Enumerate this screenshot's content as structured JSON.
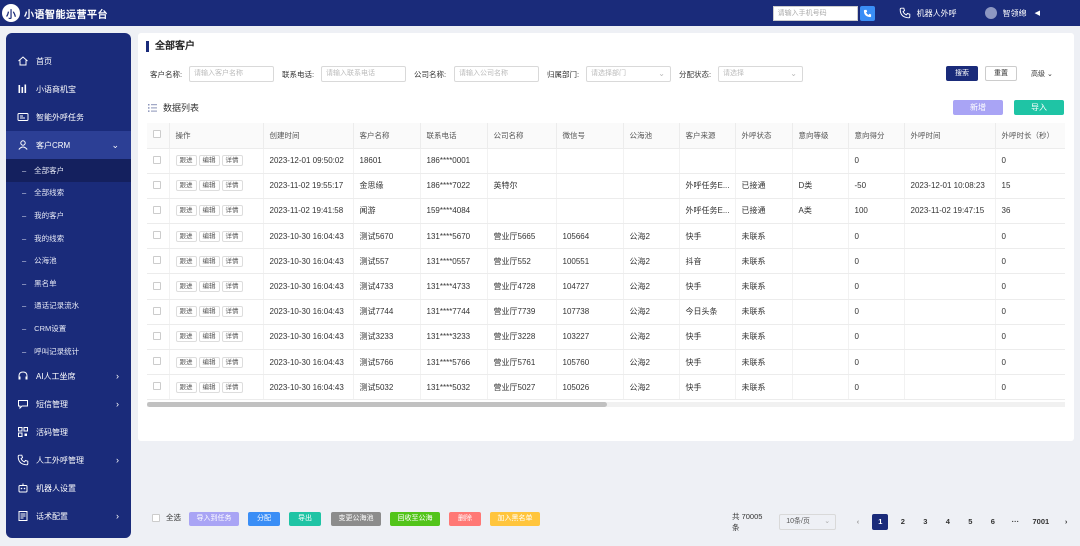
{
  "app": {
    "logo_char": "小",
    "title": "小语智能运营平台"
  },
  "header": {
    "phone_placeholder": "请输入手机号码",
    "robot_call_label": "机器人外呼",
    "user_name": "智领绵",
    "collapse_glyph": "◀"
  },
  "sidebar": {
    "items": [
      {
        "label": "首页",
        "icon": "home-icon"
      },
      {
        "label": "小语商机宝",
        "icon": "chart-bars-icon"
      },
      {
        "label": "智能外呼任务",
        "icon": "id-card-icon"
      },
      {
        "label": "客户CRM",
        "icon": "users-icon",
        "open": true
      }
    ],
    "crm_sub": [
      "全部客户",
      "全部线索",
      "我的客户",
      "我的线索",
      "公海池",
      "黑名单",
      "通话记录流水",
      "CRM设置",
      "呼叫记录统计"
    ],
    "items_after": [
      {
        "label": "AI人工坐席",
        "icon": "headset-icon",
        "chevron": true
      },
      {
        "label": "短信管理",
        "icon": "message-icon",
        "chevron": true
      },
      {
        "label": "活码管理",
        "icon": "qrcode-icon",
        "chevron": false
      },
      {
        "label": "人工外呼管理",
        "icon": "phone-icon",
        "chevron": true
      },
      {
        "label": "机器人设置",
        "icon": "robot-icon",
        "chevron": false
      },
      {
        "label": "话术配置",
        "icon": "script-icon",
        "chevron": true
      }
    ]
  },
  "page": {
    "title": "全部客户",
    "list_title": "数据列表"
  },
  "filters": {
    "customer_name": {
      "label": "客户名称:",
      "placeholder": "请输入客户名称"
    },
    "phone": {
      "label": "联系电话:",
      "placeholder": "请输入联系电话"
    },
    "company": {
      "label": "公司名称:",
      "placeholder": "请输入公司名称"
    },
    "dept": {
      "label": "归属部门:",
      "placeholder": "请选择部门"
    },
    "assign": {
      "label": "分配状态:",
      "placeholder": "请选择"
    },
    "search_label": "搜索",
    "reset_label": "重置",
    "advanced_label": "高级"
  },
  "toolbar": {
    "new_label": "新增",
    "import_label": "导入"
  },
  "table": {
    "op_labels": [
      "跟进",
      "编辑",
      "详情"
    ],
    "columns": [
      "操作",
      "创建时间",
      "客户名称",
      "联系电话",
      "公司名称",
      "微信号",
      "公海池",
      "客户来源",
      "外呼状态",
      "意向等级",
      "意向得分",
      "外呼时间",
      "外呼时长（秒）"
    ],
    "rows": [
      [
        "2023-12-01 09:50:02",
        "18601",
        "186****0001",
        "",
        "",
        "",
        "",
        "",
        "",
        "0",
        "",
        "0"
      ],
      [
        "2023-11-02 19:55:17",
        "金思缘",
        "186****7022",
        "英特尔",
        "",
        "",
        "外呼任务E...",
        "已接通",
        "D类",
        "-50",
        "2023-12-01 10:08:23",
        "15"
      ],
      [
        "2023-11-02 19:41:58",
        "闻游",
        "159****4084",
        "",
        "",
        "",
        "外呼任务E...",
        "已接通",
        "A类",
        "100",
        "2023-11-02 19:47:15",
        "36"
      ],
      [
        "2023-10-30 16:04:43",
        "测试5670",
        "131****5670",
        "营业厅5665",
        "105664",
        "公海2",
        "快手",
        "未联系",
        "",
        "0",
        "",
        "0"
      ],
      [
        "2023-10-30 16:04:43",
        "测试557",
        "131****0557",
        "营业厅552",
        "100551",
        "公海2",
        "抖音",
        "未联系",
        "",
        "0",
        "",
        "0"
      ],
      [
        "2023-10-30 16:04:43",
        "测试4733",
        "131****4733",
        "营业厅4728",
        "104727",
        "公海2",
        "快手",
        "未联系",
        "",
        "0",
        "",
        "0"
      ],
      [
        "2023-10-30 16:04:43",
        "测试7744",
        "131****7744",
        "营业厅7739",
        "107738",
        "公海2",
        "今日头条",
        "未联系",
        "",
        "0",
        "",
        "0"
      ],
      [
        "2023-10-30 16:04:43",
        "测试3233",
        "131****3233",
        "营业厅3228",
        "103227",
        "公海2",
        "快手",
        "未联系",
        "",
        "0",
        "",
        "0"
      ],
      [
        "2023-10-30 16:04:43",
        "测试5766",
        "131****5766",
        "营业厅5761",
        "105760",
        "公海2",
        "快手",
        "未联系",
        "",
        "0",
        "",
        "0"
      ],
      [
        "2023-10-30 16:04:43",
        "测试5032",
        "131****5032",
        "营业厅5027",
        "105026",
        "公海2",
        "快手",
        "未联系",
        "",
        "0",
        "",
        "0"
      ]
    ]
  },
  "bottom": {
    "select_all": "全选",
    "actions": [
      {
        "label": "导入到任务",
        "color": "#a9a4f5"
      },
      {
        "label": "分配",
        "color": "#3a8ef6"
      },
      {
        "label": "导出",
        "color": "#1fc4a5"
      },
      {
        "label": "变更公海池",
        "color": "#8c8c8c"
      },
      {
        "label": "回收至公海",
        "color": "#52c41a"
      },
      {
        "label": "删除",
        "color": "#ff7875"
      },
      {
        "label": "加入黑名单",
        "color": "#ffc53d"
      }
    ],
    "total": "共 70005 条",
    "page_size": "10条/页",
    "pages": [
      "1",
      "2",
      "3",
      "4",
      "5",
      "6",
      "···",
      "7001"
    ],
    "prev": "‹",
    "next": "›"
  }
}
